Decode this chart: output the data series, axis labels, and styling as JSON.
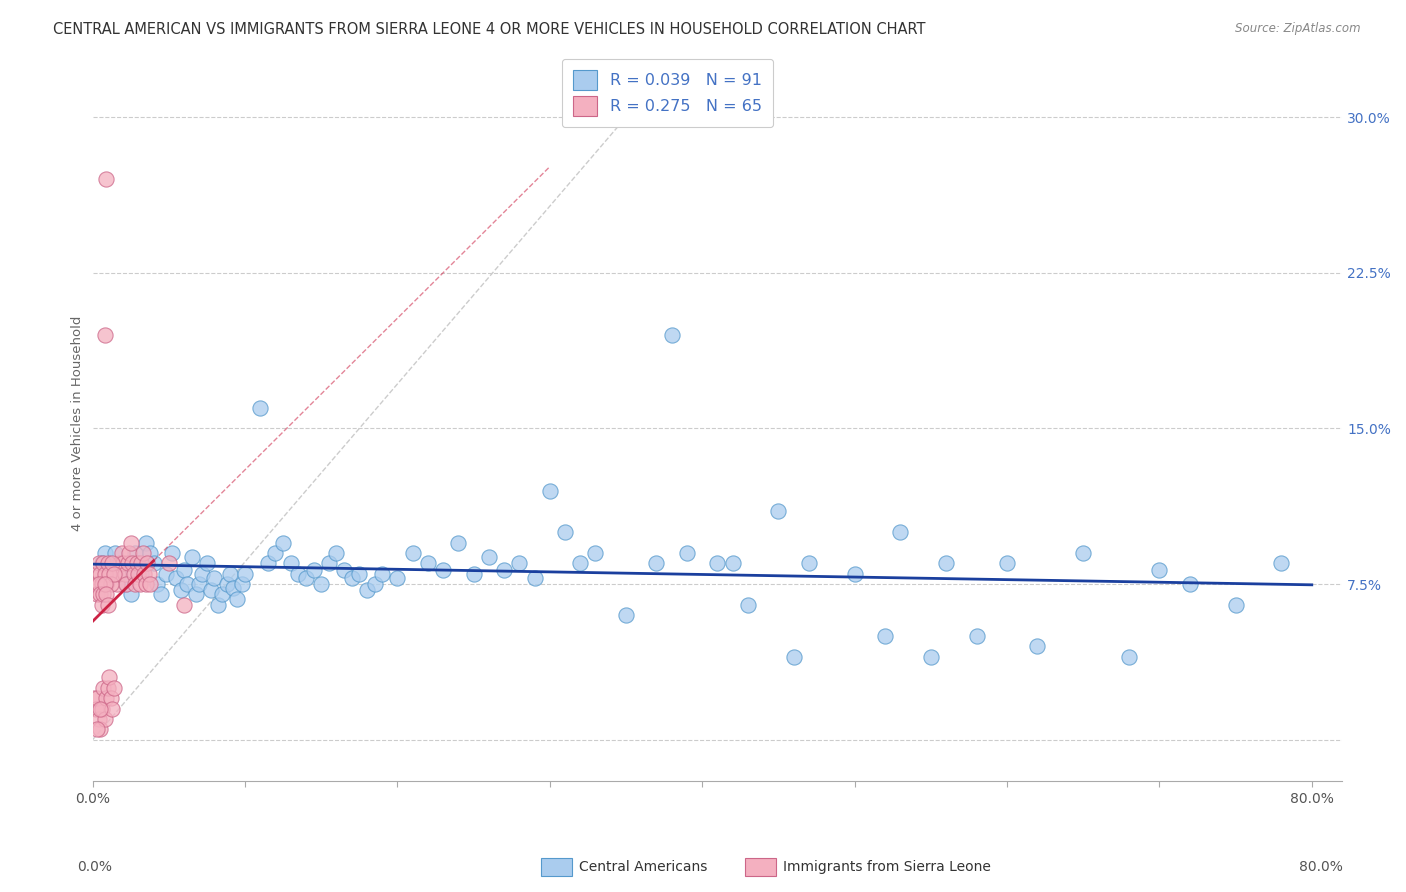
{
  "title": "CENTRAL AMERICAN VS IMMIGRANTS FROM SIERRA LEONE 4 OR MORE VEHICLES IN HOUSEHOLD CORRELATION CHART",
  "source": "Source: ZipAtlas.com",
  "ylabel": "4 or more Vehicles in Household",
  "xlim": [
    0.0,
    0.82
  ],
  "ylim": [
    -0.02,
    0.325
  ],
  "ytick_positions": [
    0.0,
    0.075,
    0.15,
    0.225,
    0.3
  ],
  "ytick_labels": [
    "",
    "7.5%",
    "15.0%",
    "22.5%",
    "30.0%"
  ],
  "xtick_positions": [
    0.0,
    0.1,
    0.2,
    0.3,
    0.4,
    0.5,
    0.6,
    0.7,
    0.8
  ],
  "xtick_labels": [
    "0.0%",
    "",
    "",
    "",
    "",
    "",
    "",
    "",
    "80.0%"
  ],
  "blue_label": "Central Americans",
  "pink_label": "Immigrants from Sierra Leone",
  "blue_R": "0.039",
  "blue_N": "91",
  "pink_R": "0.275",
  "pink_N": "65",
  "legend_color": "#4472c4",
  "trend_blue": "#1a3f9e",
  "trend_pink": "#cc2244",
  "diag_color": "#bbbbbb",
  "grid_color": "#cccccc",
  "title_color": "#333333",
  "source_color": "#888888",
  "blue_face": "#aaccee",
  "blue_edge": "#5599cc",
  "pink_face": "#f4b0c0",
  "pink_edge": "#cc6688",
  "title_fontsize": 10.5,
  "tick_fontsize": 10,
  "ylabel_color": "#666666",
  "ytick_color": "#4472c4",
  "blue_x": [
    0.008,
    0.012,
    0.015,
    0.018,
    0.022,
    0.025,
    0.028,
    0.03,
    0.032,
    0.035,
    0.038,
    0.04,
    0.042,
    0.045,
    0.048,
    0.006,
    0.052,
    0.055,
    0.058,
    0.06,
    0.062,
    0.065,
    0.068,
    0.07,
    0.072,
    0.075,
    0.078,
    0.08,
    0.082,
    0.085,
    0.088,
    0.09,
    0.092,
    0.095,
    0.098,
    0.1,
    0.11,
    0.115,
    0.12,
    0.125,
    0.13,
    0.135,
    0.14,
    0.145,
    0.15,
    0.155,
    0.16,
    0.165,
    0.17,
    0.175,
    0.18,
    0.185,
    0.19,
    0.2,
    0.21,
    0.22,
    0.23,
    0.24,
    0.25,
    0.26,
    0.27,
    0.28,
    0.29,
    0.3,
    0.31,
    0.32,
    0.33,
    0.35,
    0.37,
    0.39,
    0.41,
    0.43,
    0.45,
    0.47,
    0.5,
    0.53,
    0.56,
    0.6,
    0.65,
    0.7,
    0.75,
    0.78,
    0.38,
    0.42,
    0.46,
    0.52,
    0.55,
    0.58,
    0.62,
    0.68,
    0.72
  ],
  "blue_y": [
    0.09,
    0.085,
    0.09,
    0.08,
    0.075,
    0.07,
    0.09,
    0.085,
    0.08,
    0.095,
    0.09,
    0.085,
    0.075,
    0.07,
    0.08,
    0.085,
    0.09,
    0.078,
    0.072,
    0.082,
    0.075,
    0.088,
    0.07,
    0.075,
    0.08,
    0.085,
    0.072,
    0.078,
    0.065,
    0.07,
    0.075,
    0.08,
    0.073,
    0.068,
    0.075,
    0.08,
    0.16,
    0.085,
    0.09,
    0.095,
    0.085,
    0.08,
    0.078,
    0.082,
    0.075,
    0.085,
    0.09,
    0.082,
    0.078,
    0.08,
    0.072,
    0.075,
    0.08,
    0.078,
    0.09,
    0.085,
    0.082,
    0.095,
    0.08,
    0.088,
    0.082,
    0.085,
    0.078,
    0.12,
    0.1,
    0.085,
    0.09,
    0.06,
    0.085,
    0.09,
    0.085,
    0.065,
    0.11,
    0.085,
    0.08,
    0.1,
    0.085,
    0.085,
    0.09,
    0.082,
    0.065,
    0.085,
    0.195,
    0.085,
    0.04,
    0.05,
    0.04,
    0.05,
    0.045,
    0.04,
    0.075
  ],
  "pink_x": [
    0.001,
    0.002,
    0.003,
    0.004,
    0.005,
    0.006,
    0.007,
    0.008,
    0.009,
    0.01,
    0.011,
    0.012,
    0.013,
    0.014,
    0.015,
    0.016,
    0.017,
    0.018,
    0.019,
    0.02,
    0.021,
    0.022,
    0.023,
    0.024,
    0.025,
    0.026,
    0.027,
    0.028,
    0.029,
    0.03,
    0.031,
    0.032,
    0.033,
    0.034,
    0.035,
    0.036,
    0.037,
    0.038,
    0.002,
    0.003,
    0.004,
    0.005,
    0.006,
    0.007,
    0.008,
    0.009,
    0.01,
    0.011,
    0.012,
    0.013,
    0.014,
    0.003,
    0.004,
    0.005,
    0.006,
    0.007,
    0.008,
    0.009,
    0.01,
    0.05,
    0.06,
    0.008,
    0.009,
    0.005,
    0.003
  ],
  "pink_y": [
    0.02,
    0.015,
    0.02,
    0.01,
    0.005,
    0.015,
    0.025,
    0.01,
    0.02,
    0.025,
    0.03,
    0.02,
    0.015,
    0.025,
    0.08,
    0.075,
    0.08,
    0.085,
    0.09,
    0.085,
    0.08,
    0.075,
    0.085,
    0.09,
    0.095,
    0.085,
    0.08,
    0.075,
    0.085,
    0.08,
    0.075,
    0.085,
    0.09,
    0.08,
    0.075,
    0.085,
    0.08,
    0.075,
    0.08,
    0.075,
    0.085,
    0.08,
    0.075,
    0.085,
    0.08,
    0.075,
    0.085,
    0.08,
    0.075,
    0.085,
    0.08,
    0.07,
    0.075,
    0.07,
    0.065,
    0.07,
    0.075,
    0.07,
    0.065,
    0.085,
    0.065,
    0.195,
    0.27,
    0.015,
    0.005
  ]
}
